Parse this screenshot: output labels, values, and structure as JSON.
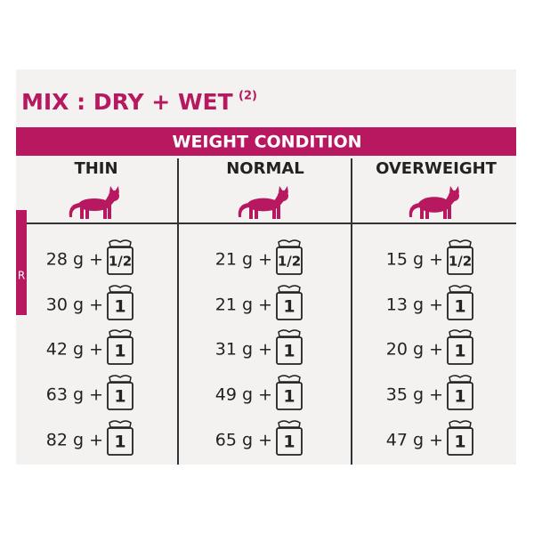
{
  "title": "MIX : DRY + WET",
  "title_note": "(2)",
  "header": "WEIGHT CONDITION",
  "side_tab": "R",
  "columns": [
    "THIN",
    "NORMAL",
    "OVERWEIGHT"
  ],
  "rows": [
    [
      {
        "amount": "28 g +",
        "pouch": "1/2"
      },
      {
        "amount": "21 g +",
        "pouch": "1/2"
      },
      {
        "amount": "15 g +",
        "pouch": "1/2"
      }
    ],
    [
      {
        "amount": "30 g +",
        "pouch": "1"
      },
      {
        "amount": "21 g +",
        "pouch": "1"
      },
      {
        "amount": "13 g +",
        "pouch": "1"
      }
    ],
    [
      {
        "amount": "42 g +",
        "pouch": "1"
      },
      {
        "amount": "31 g +",
        "pouch": "1"
      },
      {
        "amount": "20 g +",
        "pouch": "1"
      }
    ],
    [
      {
        "amount": "63 g +",
        "pouch": "1"
      },
      {
        "amount": "49 g +",
        "pouch": "1"
      },
      {
        "amount": "35 g +",
        "pouch": "1"
      }
    ],
    [
      {
        "amount": "82 g +",
        "pouch": "1"
      },
      {
        "amount": "65 g +",
        "pouch": "1"
      },
      {
        "amount": "47 g +",
        "pouch": "1"
      }
    ]
  ]
}
